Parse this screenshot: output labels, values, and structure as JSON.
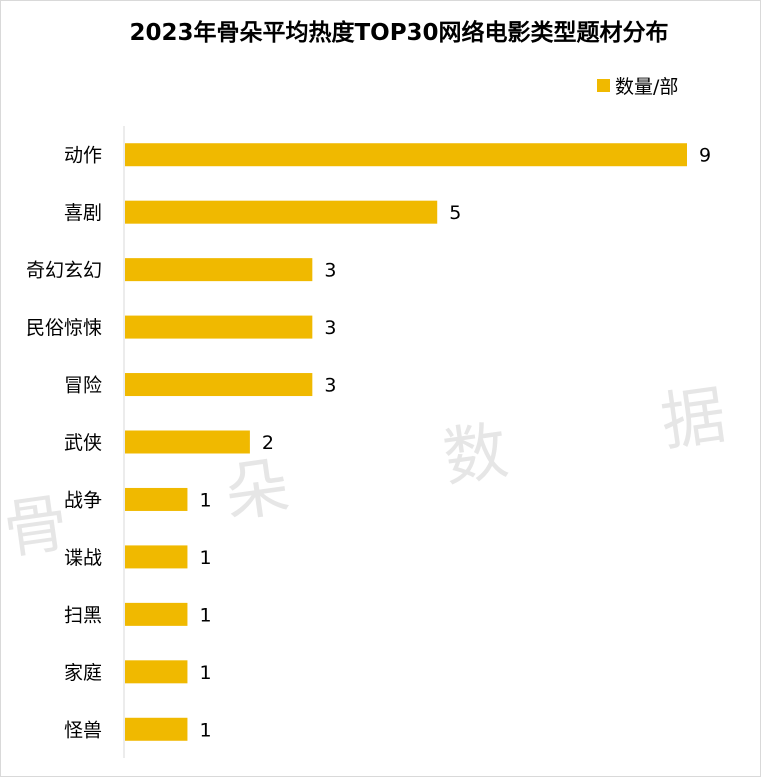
{
  "chart_data": {
    "type": "bar",
    "orientation": "horizontal",
    "title": "2023年骨朵平均热度TOP30网络电影类型题材分布",
    "legend": {
      "label": "数量/部",
      "position": "top-right"
    },
    "categories": [
      "动作",
      "喜剧",
      "奇幻玄幻",
      "民俗惊悚",
      "冒险",
      "武侠",
      "战争",
      "谍战",
      "扫黑",
      "家庭",
      "怪兽"
    ],
    "values": [
      9,
      5,
      3,
      3,
      3,
      2,
      1,
      1,
      1,
      1,
      1
    ],
    "series": [
      {
        "name": "数量/部",
        "values": [
          9,
          5,
          3,
          3,
          3,
          2,
          1,
          1,
          1,
          1,
          1
        ]
      }
    ],
    "bar_color": "#f0b900",
    "xlim": [
      0,
      9
    ],
    "grid": false
  },
  "watermark": [
    "骨",
    "朵",
    "数",
    "据"
  ]
}
